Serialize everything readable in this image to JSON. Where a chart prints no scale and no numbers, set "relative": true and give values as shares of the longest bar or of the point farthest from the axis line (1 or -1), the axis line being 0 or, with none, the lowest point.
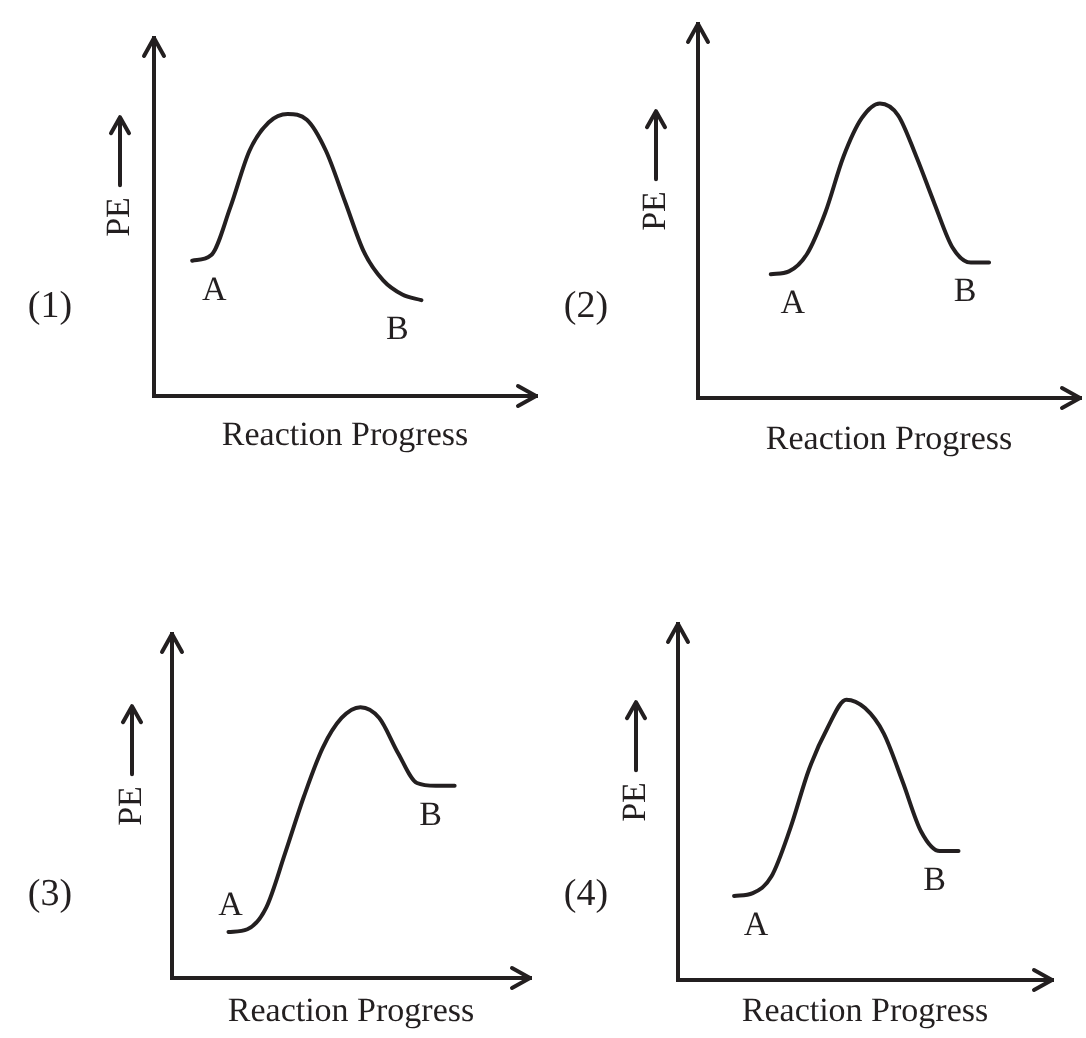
{
  "chart_data": [
    {
      "type": "line",
      "title": "(1)",
      "xlabel": "Reaction Progress",
      "ylabel": "PE",
      "relative": true,
      "color": "#231f20",
      "annotations": [
        "A",
        "B"
      ],
      "categories": [
        null,
        null,
        null,
        null,
        null,
        null,
        null,
        null,
        null,
        null,
        null,
        null,
        null,
        null,
        null,
        null,
        null,
        null,
        null,
        null,
        null
      ],
      "values": [
        null,
        null,
        0.48,
        0.5,
        0.67,
        0.87,
        0.97,
        1.0,
        0.98,
        0.87,
        0.69,
        0.51,
        0.41,
        0.36,
        0.34,
        null,
        null,
        null,
        null,
        null,
        null
      ]
    },
    {
      "type": "line",
      "title": "(2)",
      "xlabel": "Reaction Progress",
      "ylabel": "PE",
      "relative": true,
      "color": "#231f20",
      "annotations": [
        "A",
        "B"
      ],
      "categories": [
        null,
        null,
        null,
        null,
        null,
        null,
        null,
        null,
        null,
        null,
        null,
        null,
        null,
        null,
        null,
        null,
        null,
        null,
        null,
        null,
        null,
        null
      ],
      "values": [
        null,
        null,
        null,
        null,
        0.42,
        0.43,
        0.49,
        0.63,
        0.82,
        0.95,
        1.0,
        0.96,
        0.82,
        0.66,
        0.51,
        0.46,
        0.46,
        null,
        null,
        null,
        null,
        null
      ]
    },
    {
      "type": "line",
      "title": "(3)",
      "xlabel": "Reaction Progress",
      "ylabel": "PE",
      "relative": true,
      "color": "#231f20",
      "annotations": [
        "A",
        "B"
      ],
      "categories": [
        null,
        null,
        null,
        null,
        null,
        null,
        null,
        null,
        null,
        null,
        null,
        null,
        null,
        null,
        null,
        null,
        null,
        null,
        null,
        null
      ],
      "values": [
        null,
        null,
        null,
        0.17,
        0.18,
        0.26,
        0.46,
        0.67,
        0.85,
        0.96,
        1.0,
        0.96,
        0.83,
        0.72,
        0.71,
        0.71,
        null,
        null,
        null,
        null
      ]
    },
    {
      "type": "line",
      "title": "(4)",
      "xlabel": "Reaction Progress",
      "ylabel": "PE",
      "relative": true,
      "color": "#231f20",
      "annotations": [
        "A",
        "B"
      ],
      "categories": [
        null,
        null,
        null,
        null,
        null,
        null,
        null,
        null,
        null,
        null,
        null,
        null,
        null,
        null,
        null,
        null,
        null,
        null,
        null,
        null,
        null
      ],
      "values": [
        null,
        null,
        null,
        0.3,
        0.31,
        0.37,
        0.54,
        0.75,
        0.9,
        1.0,
        0.97,
        0.88,
        0.71,
        0.53,
        0.46,
        0.46,
        null,
        null,
        null,
        null,
        null
      ]
    }
  ]
}
